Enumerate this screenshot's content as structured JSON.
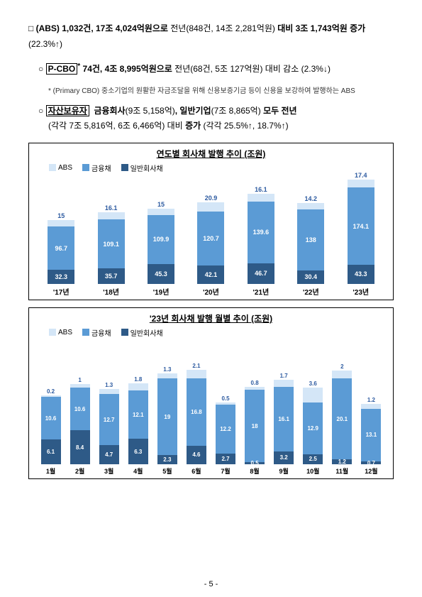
{
  "colors": {
    "abs": "#d4e6f7",
    "bond": "#5b9bd5",
    "general": "#2e5a87"
  },
  "text": {
    "p1_prefix": "(ABS) 1,032건, 17조 4,024억원으로",
    "p1_mid": " 전년(848건, 14조 2,281억원) ",
    "p1_bold2": "대비 3조 1,743억원 증가",
    "p1_suffix": " (22.3%↑)",
    "p2_label": "P-CBO",
    "p2_main": " 74건, 4조 8,995억원으로",
    "p2_tail": " 전년(68건, 5조 127억원) 대비 감소 (2.3%↓)",
    "p2_note": "* (Primary CBO) 중소기업의 원활한 자금조달을 위해 신용보증기금 등이 신용을 보강하여 발행하는 ABS",
    "p3_label": "자산보유자",
    "p3_a": "금융회사",
    "p3_a_val": "(9조 5,158억)",
    "p3_b": ", 일반기업",
    "p3_b_val": "(7조 8,865억)",
    "p3_tail": " 모두 전년",
    "p3_line2": "(각각 7조 5,816억, 6조 6,466억) 대비 ",
    "p3_bold": "증가",
    "p3_suffix": " (각각 25.5%↑, 18.7%↑)"
  },
  "legend": {
    "abs": "ABS",
    "bond": "금융채",
    "general": "일반회사채"
  },
  "chart1": {
    "title": "연도별 회사채 발행 추이 (조원)",
    "ylim": 240,
    "categories": [
      "'17년",
      "'18년",
      "'19년",
      "'20년",
      "'21년",
      "'22년",
      "'23년"
    ],
    "general": [
      32.3,
      35.7,
      45.3,
      42.1,
      46.7,
      30.4,
      43.3
    ],
    "bond": [
      96.7,
      109.1,
      109.9,
      120.7,
      139.6,
      138.0,
      174.1
    ],
    "abs": [
      15.0,
      16.1,
      15.0,
      20.9,
      16.1,
      14.2,
      17.4
    ]
  },
  "chart2": {
    "title": "'23년 회사채 발행 월별 추이 (조원)",
    "ylim": 30,
    "categories": [
      "1월",
      "2월",
      "3월",
      "4월",
      "5월",
      "6월",
      "7월",
      "8월",
      "9월",
      "10월",
      "11월",
      "12월"
    ],
    "general": [
      6.1,
      8.4,
      4.7,
      6.3,
      2.3,
      4.6,
      2.7,
      0.5,
      3.2,
      2.5,
      1.2,
      0.7
    ],
    "bond": [
      10.6,
      10.6,
      12.7,
      12.1,
      19,
      16.8,
      12.2,
      18.0,
      16.1,
      12.9,
      20.1,
      13.1
    ],
    "abs": [
      0.2,
      1,
      1.3,
      1.8,
      1.3,
      2.1,
      0.5,
      0.8,
      1.7,
      3.6,
      2.0,
      1.2
    ]
  },
  "page": "- 5 -"
}
